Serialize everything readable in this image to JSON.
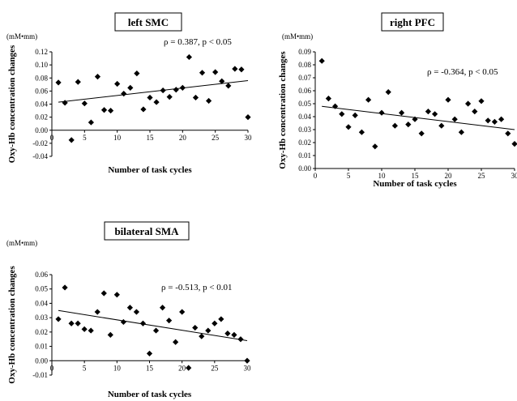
{
  "chart_data": [
    {
      "type": "scatter",
      "title": "left SMC",
      "unit": "(mM•mm)",
      "ylabel": "Oxy-Hb concentration changes",
      "xlabel": "Number of task cycles",
      "annotation": "ρ = 0.387,  p < 0.05",
      "xlim": [
        0,
        30
      ],
      "ylim": [
        -0.04,
        0.12
      ],
      "xticks": [
        0,
        5,
        10,
        15,
        20,
        25,
        30
      ],
      "yticks": [
        -0.04,
        -0.02,
        0.0,
        0.02,
        0.04,
        0.06,
        0.08,
        0.1,
        0.12
      ],
      "ytick_labels": [
        "-0.04",
        "-0.02",
        "0.00",
        "0.02",
        "0.04",
        "0.06",
        "0.08",
        "0.10",
        "0.12"
      ],
      "grid": false,
      "points": {
        "x": [
          1,
          2,
          3,
          4,
          5,
          6,
          7,
          8,
          9,
          10,
          11,
          12,
          13,
          14,
          15,
          16,
          17,
          18,
          19,
          20,
          21,
          22,
          23,
          24,
          25,
          26,
          27,
          28,
          29,
          30
        ],
        "y": [
          0.073,
          0.042,
          -0.015,
          0.074,
          0.041,
          0.012,
          0.082,
          0.031,
          0.03,
          0.071,
          0.056,
          0.065,
          0.087,
          0.032,
          0.05,
          0.043,
          0.061,
          0.051,
          0.062,
          0.065,
          0.112,
          0.05,
          0.088,
          0.045,
          0.089,
          0.075,
          0.068,
          0.094,
          0.093,
          0.02
        ]
      },
      "trendline": {
        "x": [
          1,
          30
        ],
        "y": [
          0.043,
          0.076
        ]
      }
    },
    {
      "type": "scatter",
      "title": "right PFC",
      "unit": "(mM•mm)",
      "ylabel": "Oxy-Hb concentration changes",
      "xlabel": "Number of task cycles",
      "annotation": "ρ = -0.364,  p < 0.05",
      "xlim": [
        0,
        30
      ],
      "ylim": [
        0.0,
        0.09
      ],
      "xticks": [
        0,
        5,
        10,
        15,
        20,
        25,
        30
      ],
      "yticks": [
        0.0,
        0.01,
        0.02,
        0.03,
        0.04,
        0.05,
        0.06,
        0.07,
        0.08,
        0.09
      ],
      "ytick_labels": [
        "0.00",
        "0.01",
        "0.02",
        "0.03",
        "0.04",
        "0.05",
        "0.06",
        "0.07",
        "0.08",
        "0.09"
      ],
      "grid": false,
      "points": {
        "x": [
          1,
          2,
          3,
          4,
          5,
          6,
          7,
          8,
          9,
          10,
          11,
          12,
          13,
          14,
          15,
          16,
          17,
          18,
          19,
          20,
          21,
          22,
          23,
          24,
          25,
          26,
          27,
          28,
          29,
          30
        ],
        "y": [
          0.083,
          0.054,
          0.048,
          0.042,
          0.032,
          0.041,
          0.028,
          0.053,
          0.017,
          0.043,
          0.059,
          0.033,
          0.043,
          0.034,
          0.038,
          0.027,
          0.044,
          0.042,
          0.033,
          0.053,
          0.038,
          0.028,
          0.05,
          0.044,
          0.052,
          0.037,
          0.036,
          0.038,
          0.027,
          0.019
        ]
      },
      "trendline": {
        "x": [
          1,
          30
        ],
        "y": [
          0.048,
          0.03
        ]
      }
    },
    {
      "type": "scatter",
      "title": "bilateral SMA",
      "unit": "(mM•mm)",
      "ylabel": "Oxy-Hb concentration changes",
      "xlabel": "Number of task cycles",
      "annotation": "ρ = -0.513,  p < 0.01",
      "xlim": [
        0,
        30
      ],
      "ylim": [
        -0.01,
        0.06
      ],
      "xticks": [
        0,
        5,
        10,
        15,
        20,
        25,
        30
      ],
      "yticks": [
        -0.01,
        0.0,
        0.01,
        0.02,
        0.03,
        0.04,
        0.05,
        0.06
      ],
      "ytick_labels": [
        "-0.01",
        "0.00",
        "0.01",
        "0.02",
        "0.03",
        "0.04",
        "0.05",
        "0.06"
      ],
      "grid": false,
      "points": {
        "x": [
          1,
          2,
          3,
          4,
          5,
          6,
          7,
          8,
          9,
          10,
          11,
          12,
          13,
          14,
          15,
          16,
          17,
          18,
          19,
          20,
          21,
          22,
          23,
          24,
          25,
          26,
          27,
          28,
          29,
          30
        ],
        "y": [
          0.029,
          0.051,
          0.026,
          0.026,
          0.022,
          0.021,
          0.034,
          0.047,
          0.018,
          0.046,
          0.027,
          0.037,
          0.034,
          0.026,
          0.005,
          0.021,
          0.037,
          0.028,
          0.013,
          0.034,
          -0.005,
          0.023,
          0.017,
          0.021,
          0.026,
          0.029,
          0.019,
          0.018,
          0.015,
          0.0
        ]
      },
      "trendline": {
        "x": [
          1,
          30
        ],
        "y": [
          0.035,
          0.014
        ]
      }
    }
  ]
}
